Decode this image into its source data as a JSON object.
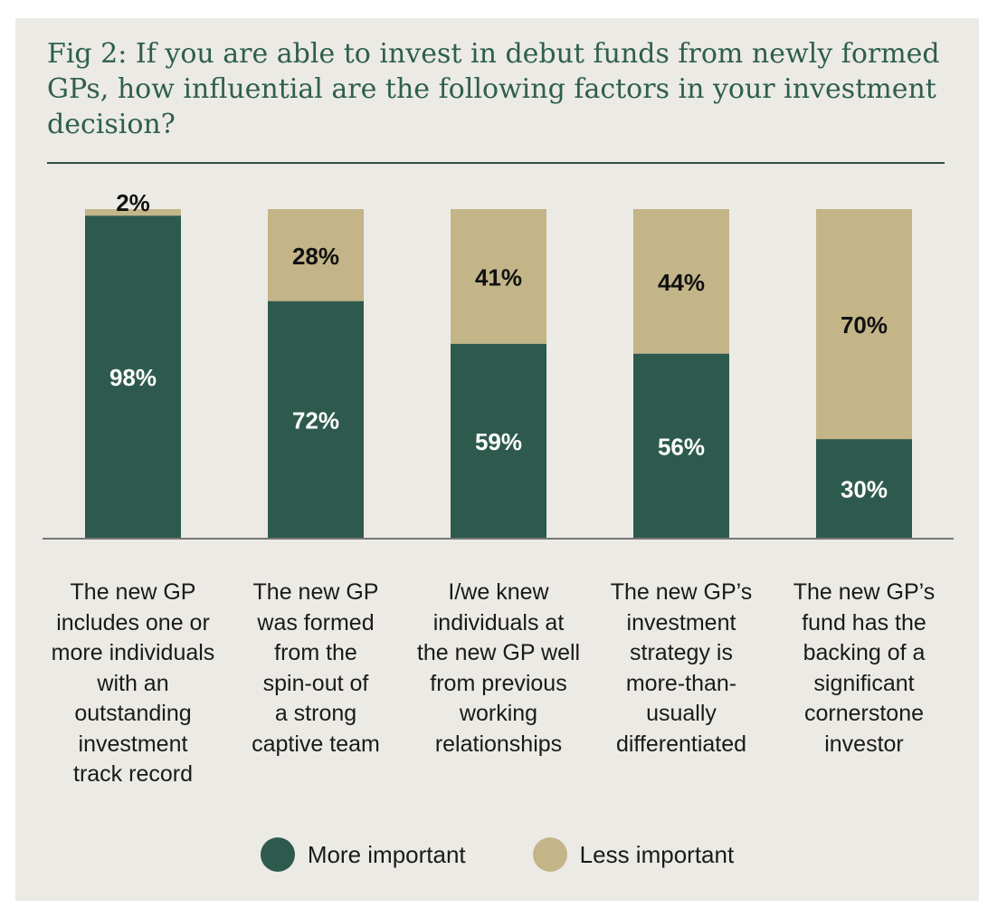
{
  "colors": {
    "more": "#2E5A4E",
    "less": "#C3B588",
    "axis": "#777777"
  },
  "chart_data": {
    "type": "bar",
    "stacked": true,
    "normalized": true,
    "title": "Fig 2: If you are able to invest in debut funds from newly formed GPs, how influential are the following factors in your investment decision?",
    "categories": [
      "The new GP includes one or more individuals with an outstanding investment track record",
      "The new GP was formed from the spin-out of a strong captive team",
      "I/we knew individuals at the new GP well from previous working relationships",
      "The new GP’s investment strategy is more-than-usually differentiated",
      "The new GP’s fund has the backing of a significant cornerstone investor"
    ],
    "series": [
      {
        "name": "More important",
        "values": [
          98,
          72,
          59,
          56,
          30
        ],
        "labels": [
          "98%",
          "72%",
          "59%",
          "56%",
          "30%"
        ]
      },
      {
        "name": "Less important",
        "values": [
          2,
          28,
          41,
          44,
          70
        ],
        "labels": [
          "2%",
          "28%",
          "41%",
          "44%",
          "70%"
        ]
      }
    ],
    "ylim": [
      0,
      100
    ],
    "legend": "bottom"
  },
  "category_lines": [
    [
      "The new GP",
      "includes one or",
      "more individuals",
      "with an",
      "outstanding",
      "investment",
      "track record"
    ],
    [
      "The new GP",
      "was formed",
      "from the",
      "spin-out of",
      "a strong",
      "captive team"
    ],
    [
      "I/we knew",
      "individuals at",
      "the new GP well",
      "from previous",
      "working",
      "relationships"
    ],
    [
      "The new GP’s",
      "investment",
      "strategy is",
      "more-than-",
      "usually",
      "differentiated"
    ],
    [
      "The new GP’s",
      "fund has the",
      "backing of a",
      "significant",
      "cornerstone",
      "investor"
    ]
  ]
}
